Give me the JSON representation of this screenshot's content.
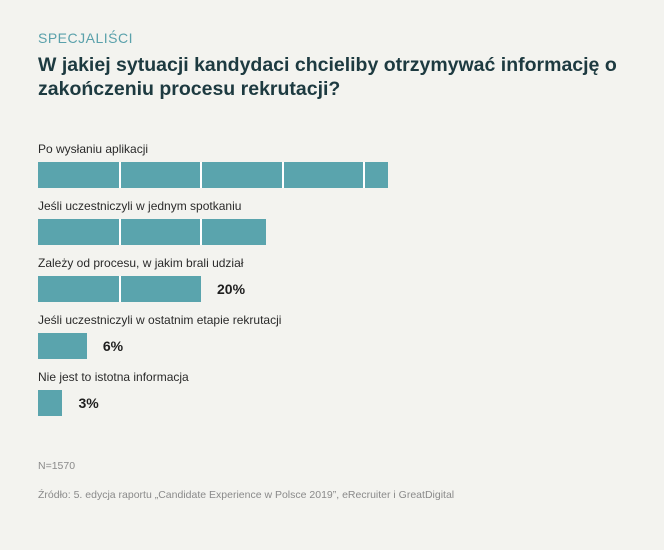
{
  "header": {
    "kicker": "SPECJALIŚCI",
    "title": "W jakiej sytuacji kandydaci chcieliby otrzymywać informację o zakończeniu procesu rekrutacji?"
  },
  "chart_data": {
    "type": "bar",
    "orientation": "horizontal",
    "categories": [
      "Po wysłaniu aplikacji",
      "Jeśli uczestniczyli w jednym spotkaniu",
      "Zależy od procesu, w jakim brali udział",
      "Jeśli uczestniczyli w ostatnim etapie rekrutacji",
      "Nie jest to istotna informacja"
    ],
    "values": [
      43,
      28,
      20,
      6,
      3
    ],
    "value_labels": [
      "",
      "",
      "20%",
      "6%",
      "3%"
    ],
    "tick_interval": 10,
    "xlim": [
      0,
      100
    ],
    "colors": {
      "bar": "#5aa4ad",
      "tick": "#ffffff"
    }
  },
  "footer": {
    "sample": "N=1570",
    "source": "Źródło: 5. edycja raportu „Candidate Experience w Polsce 2019”, eRecruiter i GreatDigital"
  }
}
